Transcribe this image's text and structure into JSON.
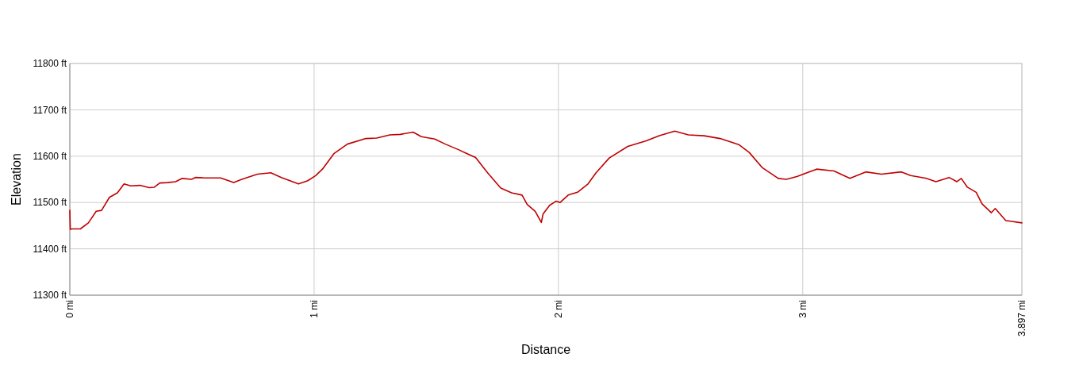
{
  "chart_data": {
    "type": "line",
    "xlabel": "Distance",
    "ylabel": "Elevation",
    "xlim": [
      0,
      3.897
    ],
    "ylim": [
      11300,
      11800
    ],
    "xticks": [
      {
        "value": 0,
        "label": "0 mi"
      },
      {
        "value": 1,
        "label": "1 mi"
      },
      {
        "value": 2,
        "label": "2 mi"
      },
      {
        "value": 3,
        "label": "3 mi"
      },
      {
        "value": 3.897,
        "label": "3.897 mi"
      }
    ],
    "yticks": [
      {
        "value": 11300,
        "label": "11300 ft"
      },
      {
        "value": 11400,
        "label": "11400 ft"
      },
      {
        "value": 11500,
        "label": "11500 ft"
      },
      {
        "value": 11600,
        "label": "11600 ft"
      },
      {
        "value": 11700,
        "label": "11700 ft"
      },
      {
        "value": 11800,
        "label": "11800 ft"
      }
    ],
    "grid": true,
    "marker": "none",
    "line_style": "solid",
    "series": [
      {
        "color": "#c00000",
        "x": [
          0,
          0.002,
          0.011,
          0.043,
          0.076,
          0.108,
          0.13,
          0.162,
          0.195,
          0.222,
          0.249,
          0.287,
          0.325,
          0.346,
          0.368,
          0.4,
          0.433,
          0.46,
          0.498,
          0.514,
          0.552,
          0.617,
          0.671,
          0.704,
          0.768,
          0.823,
          0.866,
          0.936,
          0.974,
          1.006,
          1.034,
          1.082,
          1.136,
          1.212,
          1.256,
          1.31,
          1.353,
          1.405,
          1.439,
          1.494,
          1.537,
          1.591,
          1.623,
          1.661,
          1.71,
          1.764,
          1.808,
          1.851,
          1.872,
          1.905,
          1.93,
          1.937,
          1.964,
          1.991,
          2.007,
          2.04,
          2.078,
          2.121,
          2.154,
          2.208,
          2.284,
          2.359,
          2.413,
          2.476,
          2.532,
          2.597,
          2.662,
          2.738,
          2.781,
          2.835,
          2.9,
          2.933,
          2.976,
          3.057,
          3.128,
          3.193,
          3.258,
          3.322,
          3.404,
          3.442,
          3.506,
          3.545,
          3.599,
          3.631,
          3.649,
          3.674,
          3.71,
          3.734,
          3.772,
          3.788,
          3.831,
          3.897
        ],
        "values": [
          11483,
          11442,
          11443,
          11443,
          11456,
          11481,
          11483,
          11511,
          11521,
          11540,
          11536,
          11537,
          11532,
          11533,
          11542,
          11543,
          11545,
          11552,
          11550,
          11554,
          11553,
          11553,
          11543,
          11550,
          11561,
          11564,
          11554,
          11540,
          11547,
          11558,
          11572,
          11606,
          11626,
          11638,
          11639,
          11646,
          11647,
          11652,
          11642,
          11637,
          11626,
          11614,
          11606,
          11597,
          11564,
          11531,
          11521,
          11516,
          11496,
          11481,
          11457,
          11475,
          11494,
          11503,
          11500,
          11516,
          11522,
          11540,
          11564,
          11596,
          11621,
          11633,
          11644,
          11654,
          11646,
          11644,
          11638,
          11625,
          11608,
          11575,
          11552,
          11550,
          11556,
          11572,
          11568,
          11552,
          11566,
          11561,
          11566,
          11558,
          11552,
          11545,
          11554,
          11545,
          11552,
          11533,
          11522,
          11497,
          11478,
          11487,
          11461,
          11456
        ]
      }
    ]
  }
}
